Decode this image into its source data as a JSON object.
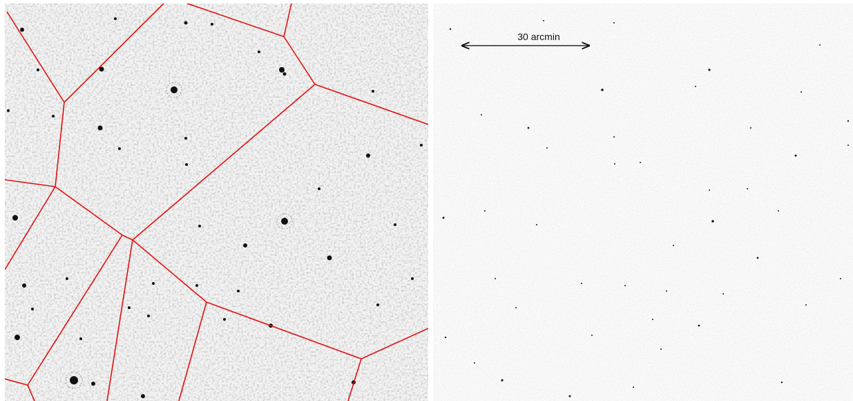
{
  "left_panel": {
    "description_colors": {
      "background": "#f3f3f3",
      "sources": "#111111",
      "noise": "#b8b8b8",
      "tessellation": "#e01010"
    }
  },
  "right_panel": {
    "scale_bar_label": "30 arcmin",
    "colors": {
      "background": "#fafafa",
      "sources": "#1a1a1a",
      "scale_bar": "#000000"
    }
  }
}
